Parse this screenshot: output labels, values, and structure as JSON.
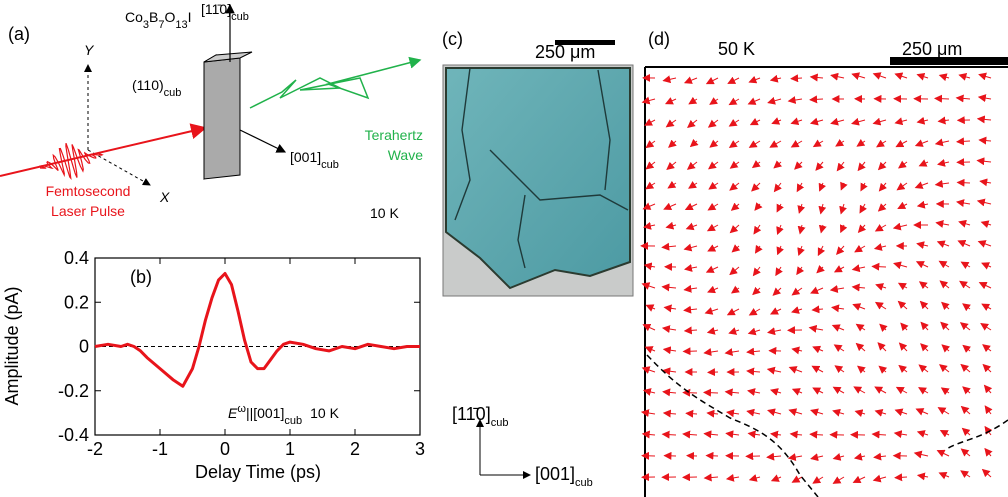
{
  "panels": {
    "a": {
      "label": "(a)",
      "formula": [
        "Co",
        "3",
        "B",
        "7",
        "O",
        "13",
        "I"
      ],
      "dir_up": [
        "[11̄0]",
        "cub"
      ],
      "plane": [
        "(110)",
        "cub"
      ],
      "dir_out": [
        "[001]",
        "cub"
      ],
      "y_axis": "Y",
      "x_axis": "X",
      "thz": [
        "Terahertz",
        "Wave"
      ],
      "laser": [
        "Femtosecond",
        "Laser Pulse"
      ],
      "temp": "10 K"
    },
    "c": {
      "label": "(c)",
      "scale": "250 μm",
      "dir_up": [
        "[11̄0]",
        "cub"
      ],
      "dir_right": [
        "[001]",
        "cub"
      ]
    },
    "d": {
      "label": "(d)",
      "temp": "50 K",
      "scale": "250 μm"
    }
  },
  "chart_data": {
    "type": "line",
    "label": "(b)",
    "annotation": [
      "E",
      "ω",
      "||[001]",
      "cub",
      "10 K"
    ],
    "xlabel": "Delay Time (ps)",
    "ylabel": "Amplitude (pA)",
    "color": "#e8141b",
    "x": [
      -2,
      -1.8,
      -1.6,
      -1.5,
      -1.4,
      -1.3,
      -1.2,
      -1.0,
      -0.8,
      -0.65,
      -0.5,
      -0.4,
      -0.3,
      -0.2,
      -0.1,
      0,
      0.1,
      0.2,
      0.3,
      0.4,
      0.5,
      0.6,
      0.7,
      0.8,
      0.9,
      1.0,
      1.2,
      1.4,
      1.6,
      1.8,
      2.0,
      2.2,
      2.4,
      2.6,
      2.8,
      3.0
    ],
    "values": [
      0,
      0.01,
      0,
      0.01,
      0,
      -0.02,
      -0.05,
      -0.1,
      -0.15,
      -0.18,
      -0.1,
      0.0,
      0.12,
      0.22,
      0.3,
      0.33,
      0.28,
      0.16,
      0.03,
      -0.07,
      -0.1,
      -0.1,
      -0.06,
      -0.02,
      0.01,
      0.02,
      0.01,
      -0.01,
      -0.02,
      0.0,
      -0.01,
      0.01,
      0.0,
      -0.01,
      0.0,
      0.0
    ],
    "xlim": [
      -2,
      3
    ],
    "ylim": [
      -0.4,
      0.4
    ],
    "xticks": [
      -2,
      -1,
      0,
      1,
      2,
      3
    ],
    "yticks": [
      -0.4,
      -0.2,
      0,
      0.2,
      0.4
    ]
  }
}
